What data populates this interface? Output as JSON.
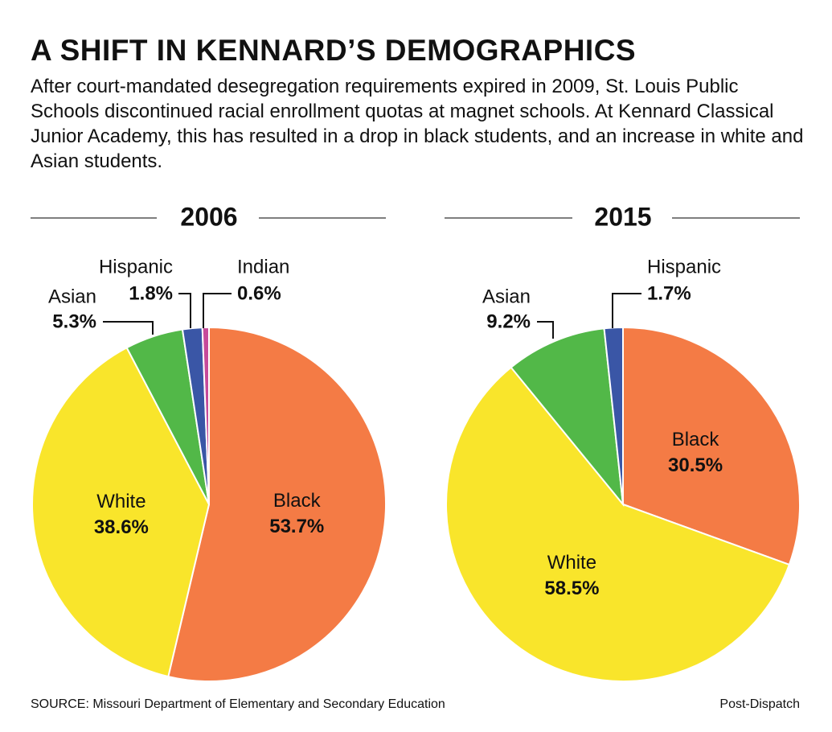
{
  "title": "A SHIFT IN KENNARD’S DEMOGRAPHICS",
  "subtitle": "After court-mandated desegregation requirements expired in 2009, St. Louis Public Schools discontinued racial enrollment quotas at magnet schools. At Kennard Classical Junior Academy, this has resulted in a drop in black students, and an increase in white and Asian students.",
  "source": "SOURCE: Missouri Department of Elementary and Secondary Education",
  "credit": "Post-Dispatch",
  "chart_data": [
    {
      "type": "pie",
      "title": "2006",
      "categories": [
        "Black",
        "White",
        "Asian",
        "Hispanic",
        "Indian"
      ],
      "values": [
        53.7,
        38.6,
        5.3,
        1.8,
        0.6
      ],
      "value_labels": [
        "53.7%",
        "38.6%",
        "5.3%",
        "1.8%",
        "0.6%"
      ],
      "colors": [
        "#f47b45",
        "#f9e52b",
        "#52b848",
        "#3a56a6",
        "#c64a9a"
      ]
    },
    {
      "type": "pie",
      "title": "2015",
      "categories": [
        "Black",
        "White",
        "Asian",
        "Hispanic"
      ],
      "values": [
        30.5,
        58.5,
        9.2,
        1.7
      ],
      "value_labels": [
        "30.5%",
        "58.5%",
        "9.2%",
        "1.7%"
      ],
      "colors": [
        "#f47b45",
        "#f9e52b",
        "#52b848",
        "#3a56a6"
      ]
    }
  ]
}
